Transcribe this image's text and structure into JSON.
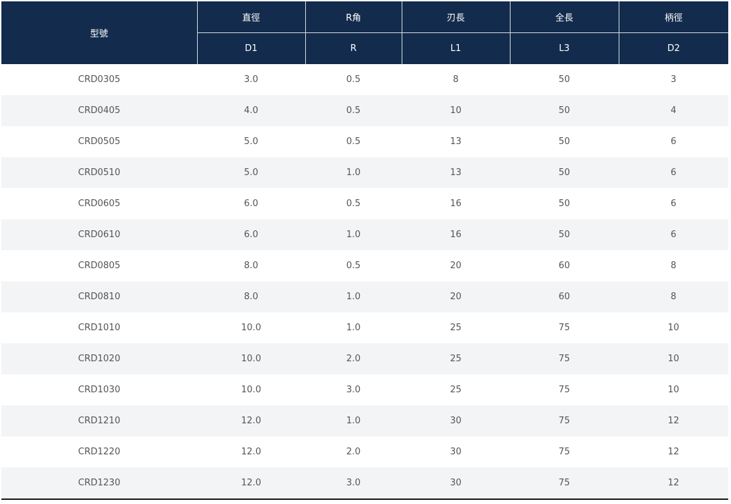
{
  "table": {
    "header": {
      "model": "型號",
      "columns": [
        {
          "name": "直徑",
          "symbol": "D1"
        },
        {
          "name": "R角",
          "symbol": "R"
        },
        {
          "name": "刃長",
          "symbol": "L1"
        },
        {
          "name": "全長",
          "symbol": "L3"
        },
        {
          "name": "柄徑",
          "symbol": "D2"
        }
      ]
    },
    "rows": [
      [
        "CRD0305",
        "3.0",
        "0.5",
        "8",
        "50",
        "3"
      ],
      [
        "CRD0405",
        "4.0",
        "0.5",
        "10",
        "50",
        "4"
      ],
      [
        "CRD0505",
        "5.0",
        "0.5",
        "13",
        "50",
        "6"
      ],
      [
        "CRD0510",
        "5.0",
        "1.0",
        "13",
        "50",
        "6"
      ],
      [
        "CRD0605",
        "6.0",
        "0.5",
        "16",
        "50",
        "6"
      ],
      [
        "CRD0610",
        "6.0",
        "1.0",
        "16",
        "50",
        "6"
      ],
      [
        "CRD0805",
        "8.0",
        "0.5",
        "20",
        "60",
        "8"
      ],
      [
        "CRD0810",
        "8.0",
        "1.0",
        "20",
        "60",
        "8"
      ],
      [
        "CRD1010",
        "10.0",
        "1.0",
        "25",
        "75",
        "10"
      ],
      [
        "CRD1020",
        "10.0",
        "2.0",
        "25",
        "75",
        "10"
      ],
      [
        "CRD1030",
        "10.0",
        "3.0",
        "25",
        "75",
        "10"
      ],
      [
        "CRD1210",
        "12.0",
        "1.0",
        "30",
        "75",
        "12"
      ],
      [
        "CRD1220",
        "12.0",
        "2.0",
        "30",
        "75",
        "12"
      ],
      [
        "CRD1230",
        "12.0",
        "3.0",
        "30",
        "75",
        "12"
      ]
    ],
    "colors": {
      "header_bg": "#132c4d",
      "header_text": "#ffffff",
      "stripe_bg": "#f3f4f6",
      "cell_text": "#555555"
    }
  }
}
